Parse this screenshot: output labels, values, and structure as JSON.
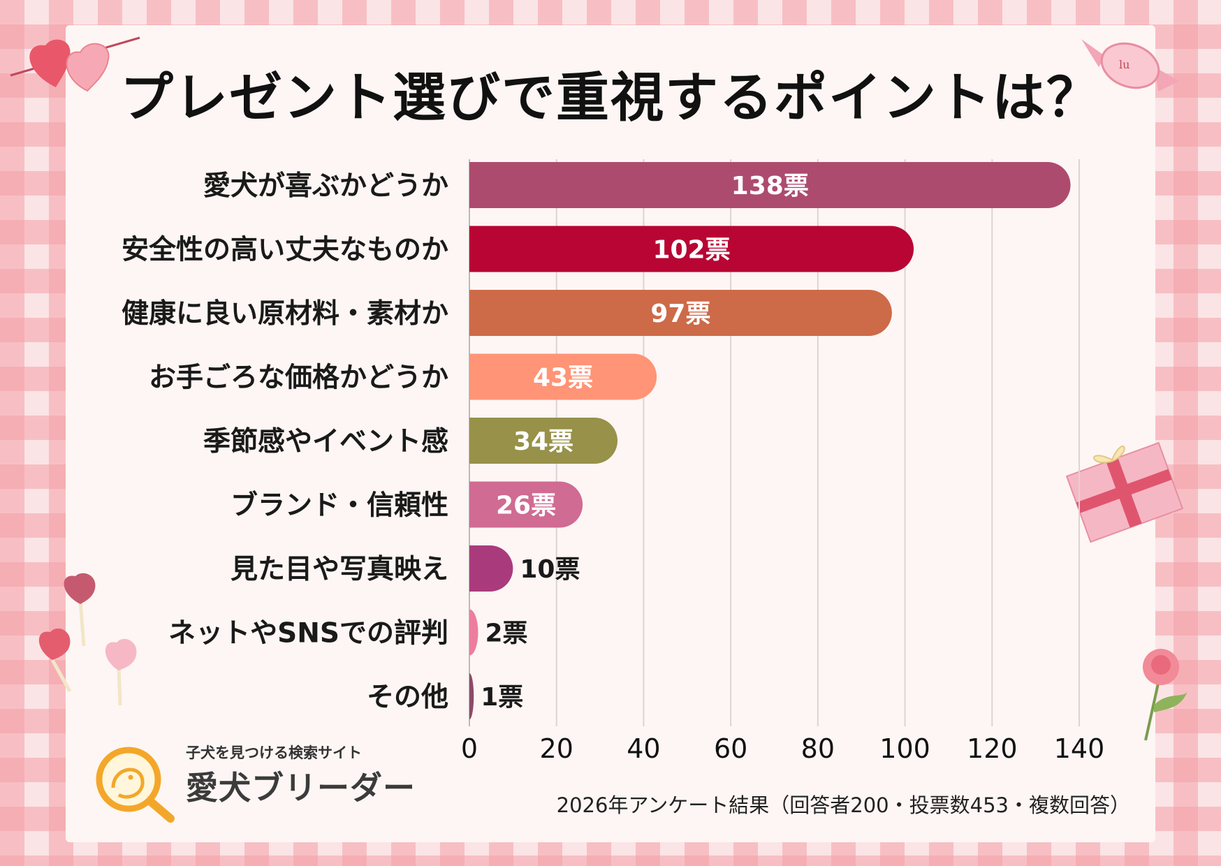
{
  "chart_data": {
    "type": "bar",
    "orientation": "horizontal",
    "title": "プレゼント選びで重視するポイントは？",
    "categories": [
      "愛犬が喜ぶかどうか",
      "安全性の高い丈夫なものか",
      "健康に良い原材料・素材か",
      "お手ごろな価格かどうか",
      "季節感やイベント感",
      "ブランド・信頼性",
      "見た目や写真映え",
      "ネットやSNSでの評判",
      "その他"
    ],
    "values": [
      138,
      102,
      97,
      43,
      34,
      26,
      10,
      2,
      1
    ],
    "value_labels": [
      "138票",
      "102票",
      "97票",
      "43票",
      "34票",
      "26票",
      "10票",
      "2票",
      "1票"
    ],
    "colors": [
      "#ad4b6e",
      "#b80533",
      "#cd6a48",
      "#ff9476",
      "#979149",
      "#d06b93",
      "#a93b7d",
      "#ec7e9d",
      "#8c4a68"
    ],
    "x_ticks": [
      "0",
      "20",
      "40",
      "60",
      "80",
      "100",
      "120",
      "140"
    ],
    "xlim": [
      0,
      140
    ],
    "grid": true
  },
  "logo": {
    "subtitle": "子犬を見つける検索サイト",
    "name": "愛犬ブリーダー"
  },
  "footnote": "2026年アンケート結果（回答者200・投票数453・複数回答）"
}
